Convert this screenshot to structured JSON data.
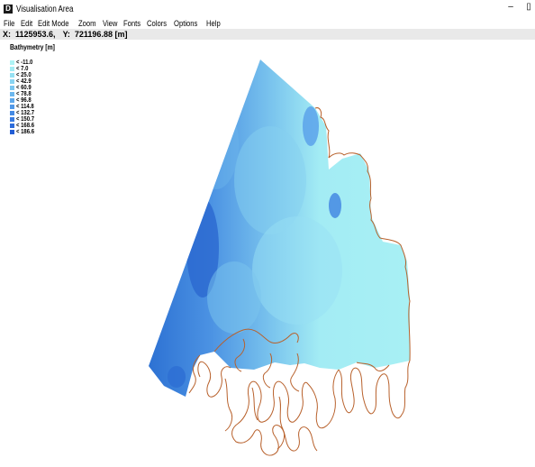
{
  "window": {
    "title": "Visualisation Area",
    "app_icon": "D",
    "minimize_glyph": "–",
    "restore_glyph": "▯"
  },
  "menu": [
    "File",
    "Edit",
    "Edit Mode",
    "Zoom",
    "View",
    "Fonts",
    "Colors",
    "Options",
    "Help"
  ],
  "coords": {
    "x_label": "X:",
    "x_value": "1125953.6,",
    "y_label": "Y:",
    "y_value": "721196.88 [m]"
  },
  "legend": {
    "title": "Bathymetry [m]",
    "items": [
      {
        "label": "< -11.0",
        "color": "#aef3f5"
      },
      {
        "label": "< 7.0",
        "color": "#a3ecf4"
      },
      {
        "label": "< 25.0",
        "color": "#96e1f3"
      },
      {
        "label": "< 42.9",
        "color": "#88d4f2"
      },
      {
        "label": "< 60.9",
        "color": "#7ac6f0"
      },
      {
        "label": "< 78.8",
        "color": "#6cb7ee"
      },
      {
        "label": "< 96.8",
        "color": "#5ea8eb"
      },
      {
        "label": "< 114.8",
        "color": "#5199e8"
      },
      {
        "label": "< 132.7",
        "color": "#448ae4"
      },
      {
        "label": "< 150.7",
        "color": "#387be0"
      },
      {
        "label": "< 168.6",
        "color": "#2d6cdb"
      },
      {
        "label": "< 186.6",
        "color": "#225dd5"
      }
    ]
  },
  "colors": {
    "shallow": "#a8f0f4",
    "deep": "#2b6fd2",
    "coastline": "#b8612c"
  }
}
